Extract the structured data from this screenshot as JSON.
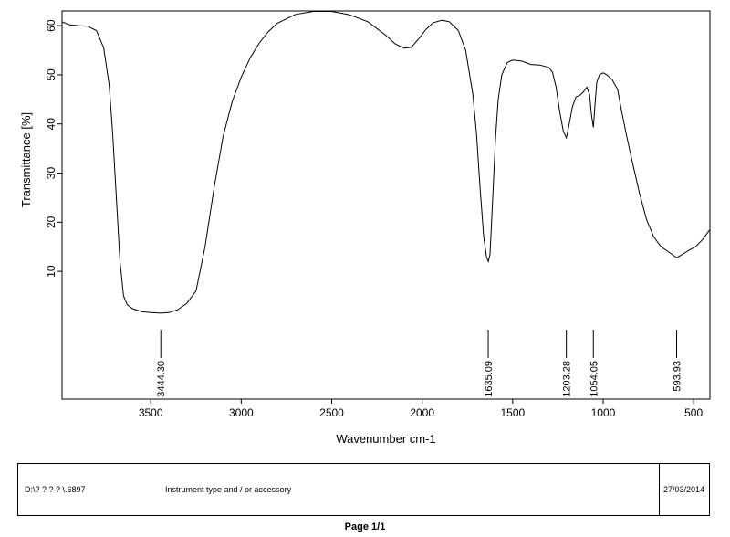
{
  "chart_data": {
    "type": "line",
    "title": "",
    "xlabel": "Wavenumber cm-1",
    "ylabel": "Transmittance [%]",
    "xlim": [
      3990,
      410
    ],
    "ylim": [
      -16,
      63
    ],
    "x_ticks": [
      3500,
      3000,
      2500,
      2000,
      1500,
      1000,
      500
    ],
    "y_ticks": [
      10,
      20,
      30,
      40,
      50,
      60
    ],
    "grid": false,
    "series": [
      {
        "values": [
          [
            3990,
            60.8
          ],
          [
            3950,
            60.2
          ],
          [
            3900,
            60.0
          ],
          [
            3850,
            59.9
          ],
          [
            3800,
            59.0
          ],
          [
            3760,
            55.5
          ],
          [
            3730,
            48.0
          ],
          [
            3710,
            38.0
          ],
          [
            3690,
            25.0
          ],
          [
            3670,
            12.0
          ],
          [
            3650,
            5.0
          ],
          [
            3630,
            3.2
          ],
          [
            3600,
            2.4
          ],
          [
            3550,
            1.8
          ],
          [
            3500,
            1.6
          ],
          [
            3444,
            1.5
          ],
          [
            3400,
            1.6
          ],
          [
            3350,
            2.2
          ],
          [
            3300,
            3.5
          ],
          [
            3250,
            6.0
          ],
          [
            3200,
            15.0
          ],
          [
            3150,
            27.0
          ],
          [
            3100,
            37.5
          ],
          [
            3050,
            44.5
          ],
          [
            3000,
            49.5
          ],
          [
            2950,
            53.5
          ],
          [
            2900,
            56.5
          ],
          [
            2850,
            58.8
          ],
          [
            2800,
            60.5
          ],
          [
            2700,
            62.3
          ],
          [
            2600,
            62.9
          ],
          [
            2500,
            62.9
          ],
          [
            2400,
            62.2
          ],
          [
            2300,
            60.8
          ],
          [
            2200,
            58.0
          ],
          [
            2150,
            56.3
          ],
          [
            2100,
            55.4
          ],
          [
            2060,
            55.6
          ],
          [
            2020,
            57.3
          ],
          [
            1980,
            59.2
          ],
          [
            1940,
            60.6
          ],
          [
            1890,
            61.1
          ],
          [
            1850,
            60.8
          ],
          [
            1800,
            59.0
          ],
          [
            1760,
            55.0
          ],
          [
            1720,
            46.0
          ],
          [
            1700,
            38.0
          ],
          [
            1680,
            27.0
          ],
          [
            1660,
            17.0
          ],
          [
            1645,
            13.0
          ],
          [
            1635,
            12.0
          ],
          [
            1625,
            13.5
          ],
          [
            1610,
            25.0
          ],
          [
            1595,
            37.0
          ],
          [
            1580,
            45.0
          ],
          [
            1560,
            50.0
          ],
          [
            1530,
            52.5
          ],
          [
            1500,
            53.0
          ],
          [
            1450,
            52.8
          ],
          [
            1400,
            52.1
          ],
          [
            1350,
            52.0
          ],
          [
            1300,
            51.5
          ],
          [
            1280,
            50.5
          ],
          [
            1260,
            47.5
          ],
          [
            1240,
            42.5
          ],
          [
            1220,
            38.5
          ],
          [
            1203,
            37.2
          ],
          [
            1190,
            39.5
          ],
          [
            1170,
            43.5
          ],
          [
            1150,
            45.5
          ],
          [
            1130,
            45.8
          ],
          [
            1110,
            46.5
          ],
          [
            1090,
            47.5
          ],
          [
            1075,
            46.0
          ],
          [
            1065,
            42.0
          ],
          [
            1054,
            39.3
          ],
          [
            1045,
            44.0
          ],
          [
            1035,
            48.5
          ],
          [
            1020,
            50.0
          ],
          [
            1000,
            50.4
          ],
          [
            980,
            50.0
          ],
          [
            950,
            49.0
          ],
          [
            920,
            47.0
          ],
          [
            900,
            43.0
          ],
          [
            870,
            37.5
          ],
          [
            840,
            32.5
          ],
          [
            800,
            26.0
          ],
          [
            760,
            20.5
          ],
          [
            720,
            17.0
          ],
          [
            680,
            15.0
          ],
          [
            640,
            14.0
          ],
          [
            610,
            13.2
          ],
          [
            594,
            12.8
          ],
          [
            570,
            13.3
          ],
          [
            530,
            14.2
          ],
          [
            490,
            15.0
          ],
          [
            450,
            16.5
          ],
          [
            410,
            18.5
          ]
        ]
      }
    ],
    "peaks": [
      {
        "x": 3444.3,
        "label": "3444.30"
      },
      {
        "x": 1635.09,
        "label": "1635.09"
      },
      {
        "x": 1203.28,
        "label": "1203.28"
      },
      {
        "x": 1054.05,
        "label": "1054.05"
      },
      {
        "x": 593.93,
        "label": "593.93"
      }
    ]
  },
  "footer": {
    "path": "D:\\? ? ? ? \\.6897",
    "instrument": "Instrument type and / or accessory",
    "date": "27/03/2014"
  },
  "page_indicator": "Page 1/1"
}
